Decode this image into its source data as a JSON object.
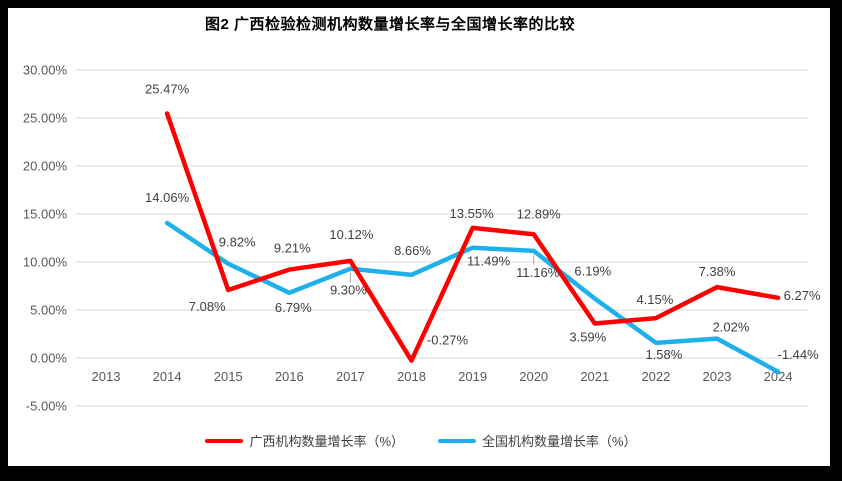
{
  "chart_data": {
    "type": "line",
    "title": "图2 广西检验检测机构数量增长率与全国增长率的比较",
    "categories": [
      "2013",
      "2014",
      "2015",
      "2016",
      "2017",
      "2018",
      "2019",
      "2020",
      "2021",
      "2022",
      "2023",
      "2024"
    ],
    "series": [
      {
        "name": "广西机构数量增长率（%）",
        "color": "#FF0000",
        "values": [
          null,
          25.47,
          7.08,
          9.21,
          10.12,
          -0.27,
          13.55,
          12.89,
          3.59,
          4.15,
          7.38,
          6.27
        ]
      },
      {
        "name": "全国机构数量增长率（%）",
        "color": "#1FB0EA",
        "values": [
          null,
          14.06,
          9.82,
          6.79,
          9.3,
          8.66,
          11.49,
          11.16,
          6.19,
          1.58,
          2.02,
          -1.44
        ]
      }
    ],
    "y_axis": {
      "min": -5,
      "max": 30,
      "step": 5,
      "tick_labels": [
        "30.00%",
        "25.00%",
        "20.00%",
        "15.00%",
        "10.00%",
        "5.00%",
        "0.00%",
        "-5.00%"
      ]
    },
    "xlabel": "",
    "ylabel": "",
    "ylim": [
      -5,
      30
    ],
    "grid": true,
    "legend_position": "bottom",
    "style": {
      "grid_color": "#D9D9D9",
      "axis_color": "#595959",
      "label_color": "#404040",
      "leader_color": "#A6A6A6",
      "frame_color": "#000000",
      "background": "#FFFFFF"
    },
    "layout": {
      "label_offsets": [
        [
          null,
          [
            0,
            -20
          ],
          [
            -21,
            21
          ],
          [
            3,
            -17
          ],
          [
            1,
            -22
          ],
          [
            36,
            -16
          ],
          [
            -1,
            -10
          ],
          [
            5,
            -16
          ],
          [
            -7,
            18
          ],
          [
            -1,
            -14
          ],
          [
            0,
            -11
          ],
          [
            24,
            2
          ]
        ],
        [
          null,
          [
            0,
            -21
          ],
          [
            9,
            -17
          ],
          [
            4,
            19
          ],
          [
            -2,
            26
          ],
          [
            1,
            -20
          ],
          [
            16,
            18
          ],
          [
            4,
            26
          ],
          [
            -2,
            -23
          ],
          [
            8,
            16
          ],
          [
            14,
            -7
          ],
          [
            20,
            -13
          ]
        ]
      ],
      "leader_points": [
        [
          1,
          4
        ],
        [
          1,
          7
        ]
      ]
    }
  }
}
